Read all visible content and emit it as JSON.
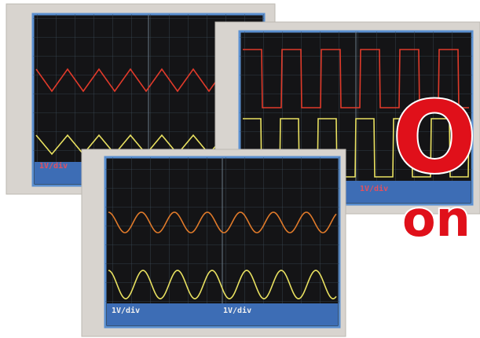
{
  "screens": [
    {
      "labels": [
        "1V/div"
      ]
    },
    {
      "labels": [
        "1V/div",
        "1V/div"
      ]
    },
    {
      "labels": [
        "1V/div",
        "1V/div"
      ]
    }
  ],
  "headline": {
    "title": "OL",
    "subtitle": "on"
  }
}
